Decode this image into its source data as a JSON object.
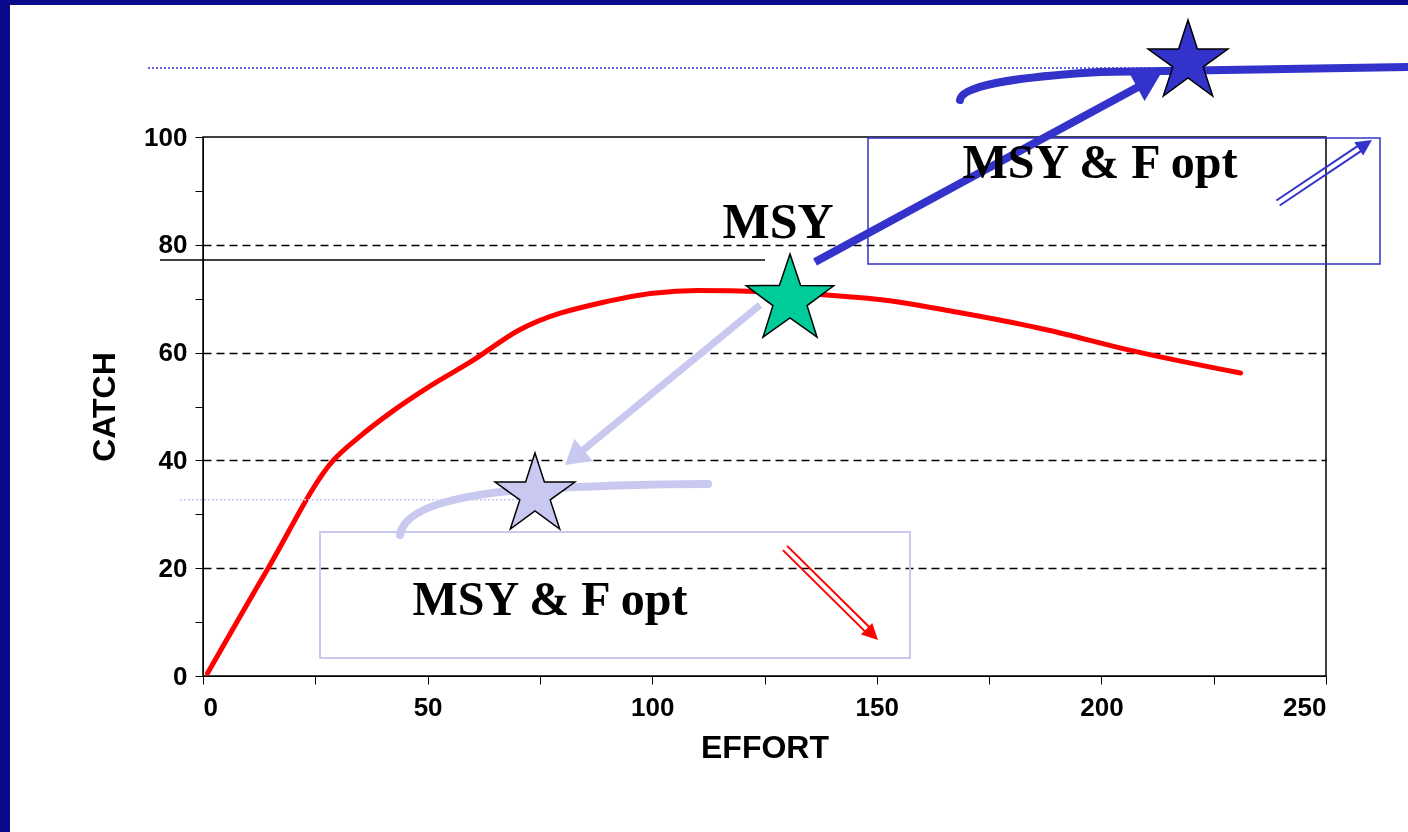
{
  "chart_data": {
    "type": "line",
    "xlabel": "EFFORT",
    "ylabel": "CATCH",
    "x": [
      1,
      14.5,
      29,
      35,
      42,
      50,
      60,
      70,
      90,
      110,
      148,
      168,
      188,
      206,
      231
    ],
    "series": [
      {
        "color": "#ff0000",
        "values": [
          0.5,
          20,
          40,
          44.5,
          49,
          53.5,
          58.5,
          64,
          69.5,
          71.5,
          70.1,
          67.5,
          64.2,
          60.5,
          56.2
        ]
      }
    ],
    "xlim": [
      0,
      250
    ],
    "ylim": [
      0,
      100
    ],
    "xticks": [
      0,
      {
        "value": 25,
        "label": null
      },
      50,
      {
        "value": 75,
        "label": null
      },
      100,
      {
        "value": 125,
        "label": null
      },
      150,
      {
        "value": 175,
        "label": null
      },
      200,
      {
        "value": 225,
        "label": null
      },
      250
    ],
    "yticks": [
      0,
      {
        "value": 10,
        "label": null
      },
      20,
      {
        "value": 30,
        "label": null
      },
      40,
      {
        "value": 50,
        "label": null
      },
      60,
      {
        "value": 70,
        "label": null
      },
      80,
      {
        "value": 90,
        "label": null
      },
      100
    ],
    "ref_lines": [
      {
        "axis": "y",
        "value": 32.7,
        "color": "#c8c8f0",
        "line_style": "dotted"
      }
    ],
    "grid": "y",
    "marker": "none",
    "line_style": "solid",
    "annotations": [
      "MSY",
      "MSY & F opt",
      "MSY & F opt"
    ]
  }
}
